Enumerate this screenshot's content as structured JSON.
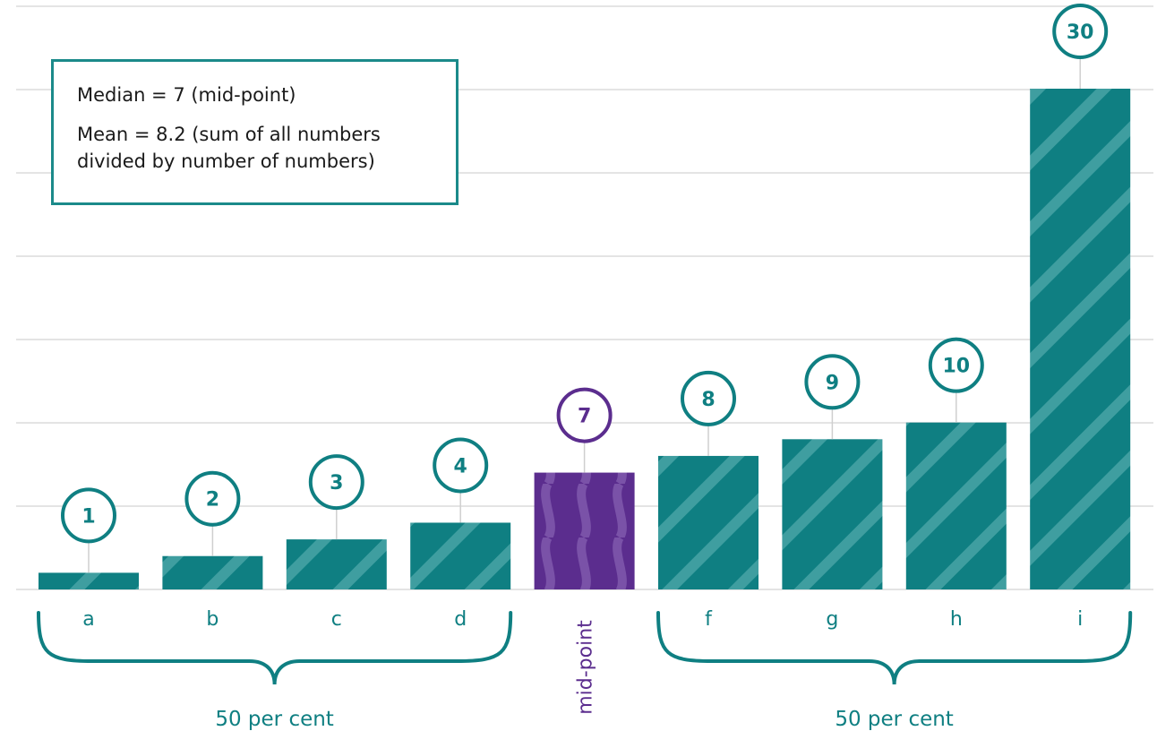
{
  "chart_data": {
    "type": "bar",
    "categories": [
      "a",
      "b",
      "c",
      "d",
      "mid-point",
      "f",
      "g",
      "h",
      "i"
    ],
    "values": [
      1,
      2,
      3,
      4,
      7,
      8,
      9,
      10,
      30
    ],
    "value_labels": [
      "1",
      "2",
      "3",
      "4",
      "7",
      "8",
      "9",
      "10",
      "30"
    ],
    "highlight_index": 4,
    "ylim": [
      0,
      36
    ],
    "grid": true,
    "groups": [
      {
        "label": "50 per cent",
        "from": 0,
        "to": 3
      },
      {
        "label": "50 per cent",
        "from": 5,
        "to": 8
      }
    ]
  },
  "annotation": {
    "line1": "Median = 7 (mid-point)",
    "line2a": "Mean = 8.2 (sum of all numbers",
    "line2b": "divided by number of numbers)"
  },
  "colors": {
    "teal": "#0f7f82",
    "teal_light": "#3f9ea0",
    "purple": "#5b2d8e",
    "purple_light": "#7a52a8",
    "grid": "#e4e4e4"
  }
}
